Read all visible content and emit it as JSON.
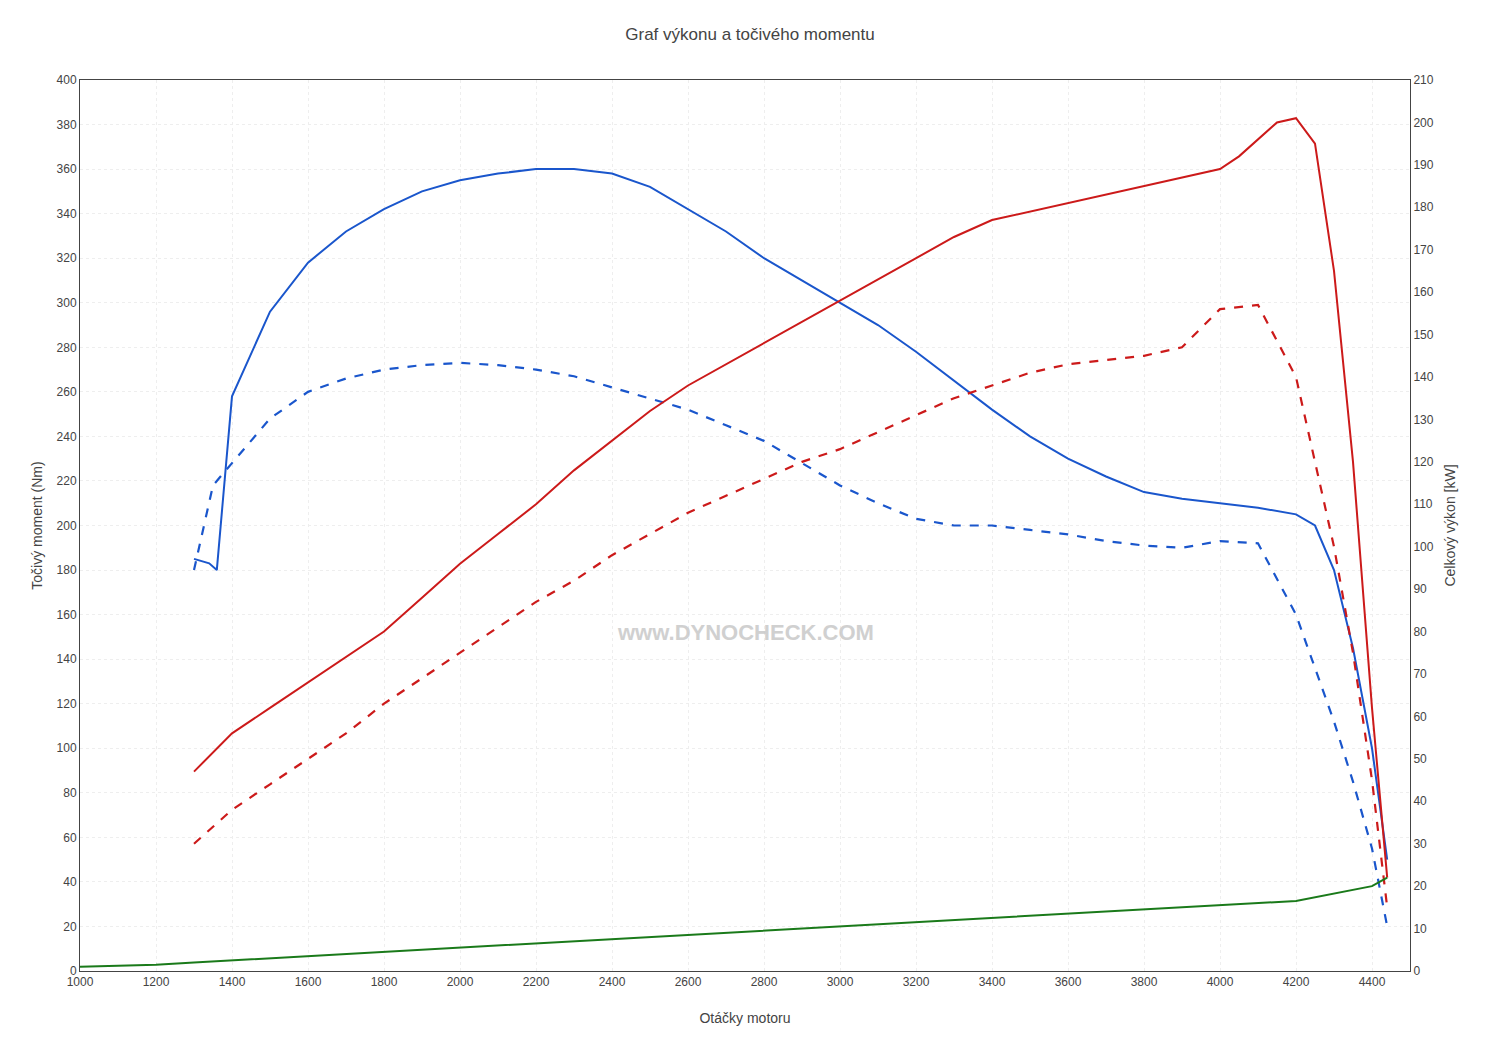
{
  "chart_data": {
    "type": "line",
    "title": "Graf výkonu a točivého momentu",
    "xlabel": "Otáčky motoru",
    "ylabel": "Točivý moment (Nm)",
    "y2label": "Celkový výkon [kW]",
    "xlim": [
      1000,
      4500
    ],
    "ylim": [
      0,
      400
    ],
    "y2lim": [
      0,
      210
    ],
    "xticks": [
      1000,
      1200,
      1400,
      1600,
      1800,
      2000,
      2200,
      2400,
      2600,
      2800,
      3000,
      3200,
      3400,
      3600,
      3800,
      4000,
      4200,
      4400
    ],
    "yticks": [
      0,
      20,
      40,
      60,
      80,
      100,
      120,
      140,
      160,
      180,
      200,
      220,
      240,
      260,
      280,
      300,
      320,
      340,
      360,
      380,
      400
    ],
    "y2ticks": [
      0,
      10,
      20,
      30,
      40,
      50,
      60,
      70,
      80,
      90,
      100,
      110,
      120,
      130,
      140,
      150,
      160,
      170,
      180,
      190,
      200,
      210
    ],
    "grid": true,
    "annotations": [
      {
        "text": "www.DYNOCHECK.COM",
        "color": "#c8c8c8"
      }
    ],
    "series": [
      {
        "color": "#1a56cc",
        "line_style": "solid",
        "axis": "y",
        "x": [
          1300,
          1340,
          1360,
          1400,
          1500,
          1600,
          1700,
          1800,
          1900,
          2000,
          2100,
          2200,
          2300,
          2400,
          2500,
          2600,
          2700,
          2800,
          2900,
          3000,
          3100,
          3200,
          3300,
          3400,
          3500,
          3600,
          3700,
          3800,
          3900,
          4000,
          4100,
          4200,
          4250,
          4300,
          4350,
          4400,
          4440
        ],
        "values": [
          185,
          183,
          180,
          258,
          296,
          318,
          332,
          342,
          350,
          355,
          358,
          360,
          360,
          358,
          352,
          342,
          332,
          320,
          310,
          300,
          290,
          278,
          265,
          252,
          240,
          230,
          222,
          215,
          212,
          210,
          208,
          205,
          200,
          180,
          145,
          100,
          50
        ]
      },
      {
        "color": "#1a56cc",
        "line_style": "dashed",
        "axis": "y",
        "x": [
          1300,
          1350,
          1400,
          1500,
          1600,
          1700,
          1800,
          1900,
          2000,
          2100,
          2200,
          2300,
          2400,
          2500,
          2600,
          2700,
          2800,
          2900,
          3000,
          3100,
          3200,
          3300,
          3400,
          3500,
          3600,
          3700,
          3800,
          3900,
          4000,
          4100,
          4200,
          4300,
          4350,
          4400,
          4440
        ],
        "values": [
          180,
          218,
          228,
          248,
          260,
          266,
          270,
          272,
          273,
          272,
          270,
          267,
          262,
          257,
          252,
          245,
          238,
          228,
          218,
          210,
          203,
          200,
          200,
          198,
          196,
          193,
          191,
          190,
          193,
          192,
          160,
          112,
          85,
          55,
          20
        ]
      },
      {
        "color": "#cc1a1a",
        "line_style": "solid",
        "axis": "y2",
        "x": [
          1300,
          1400,
          1500,
          1600,
          1700,
          1800,
          1900,
          2000,
          2100,
          2200,
          2300,
          2400,
          2500,
          2600,
          2700,
          2800,
          2900,
          3000,
          3100,
          3200,
          3300,
          3400,
          3500,
          3600,
          3700,
          3800,
          3900,
          4000,
          4050,
          4100,
          4150,
          4200,
          4250,
          4300,
          4350,
          4400,
          4440
        ],
        "values": [
          47,
          56,
          62,
          68,
          74,
          80,
          88,
          96,
          103,
          110,
          118,
          125,
          132,
          138,
          143,
          148,
          153,
          158,
          163,
          168,
          173,
          177,
          179,
          181,
          183,
          185,
          187,
          189,
          192,
          196,
          200,
          201,
          195,
          165,
          120,
          62,
          22
        ]
      },
      {
        "color": "#cc1a1a",
        "line_style": "dashed",
        "axis": "y2",
        "x": [
          1300,
          1400,
          1500,
          1600,
          1700,
          1800,
          1900,
          2000,
          2100,
          2200,
          2300,
          2400,
          2500,
          2600,
          2700,
          2800,
          2900,
          3000,
          3100,
          3200,
          3300,
          3400,
          3500,
          3600,
          3700,
          3800,
          3900,
          4000,
          4100,
          4200,
          4300,
          4350,
          4400,
          4440
        ],
        "values": [
          30,
          38,
          44,
          50,
          56,
          63,
          69,
          75,
          81,
          87,
          92,
          98,
          103,
          108,
          112,
          116,
          120,
          123,
          127,
          131,
          135,
          138,
          141,
          143,
          144,
          145,
          147,
          156,
          157,
          140,
          100,
          75,
          45,
          15
        ]
      },
      {
        "color": "#1a7a1a",
        "line_style": "solid",
        "axis": "y2",
        "x": [
          1000,
          1200,
          1300,
          1400,
          1600,
          1800,
          2000,
          2200,
          2400,
          2600,
          2800,
          3000,
          3200,
          3400,
          3600,
          3800,
          4000,
          4200,
          4400,
          4440
        ],
        "values": [
          1,
          1.5,
          2,
          2.5,
          3.5,
          4.5,
          5.5,
          6.5,
          7.5,
          8.5,
          9.5,
          10.5,
          11.5,
          12.5,
          13.5,
          14.5,
          15.5,
          16.5,
          20,
          22
        ]
      }
    ]
  }
}
